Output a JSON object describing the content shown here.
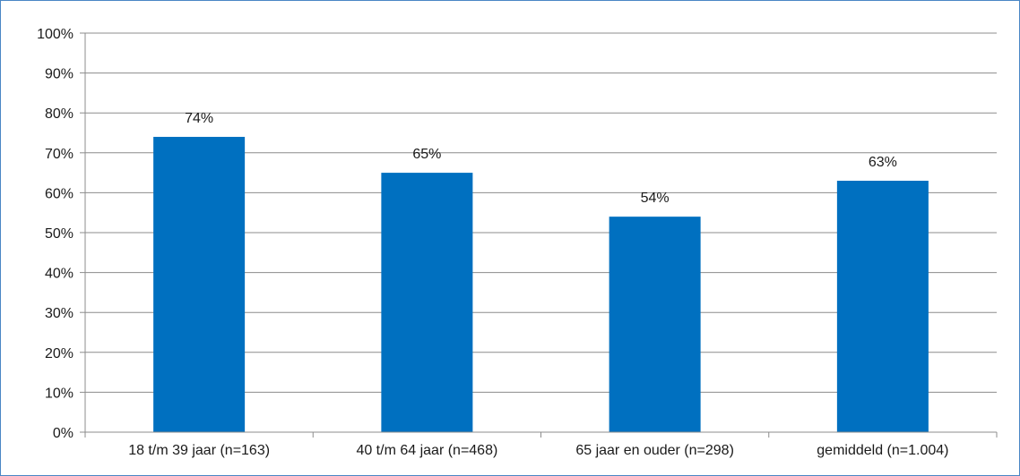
{
  "chart_data": {
    "type": "bar",
    "categories": [
      "18 t/m 39 jaar (n=163)",
      "40 t/m 64 jaar (n=468)",
      "65 jaar en ouder (n=298)",
      "gemiddeld (n=1.004)"
    ],
    "values": [
      74,
      65,
      54,
      63
    ],
    "value_labels": [
      "74%",
      "65%",
      "54%",
      "63%"
    ],
    "yticks": [
      "0%",
      "10%",
      "20%",
      "30%",
      "40%",
      "50%",
      "60%",
      "70%",
      "80%",
      "90%",
      "100%"
    ],
    "ylim": [
      0,
      100
    ],
    "title": "",
    "xlabel": "",
    "ylabel": "",
    "grid": true,
    "legend": "none",
    "bar_color": "#0070c0",
    "grid_color": "#8c8c8c",
    "frame_color": "#4a86c5"
  }
}
